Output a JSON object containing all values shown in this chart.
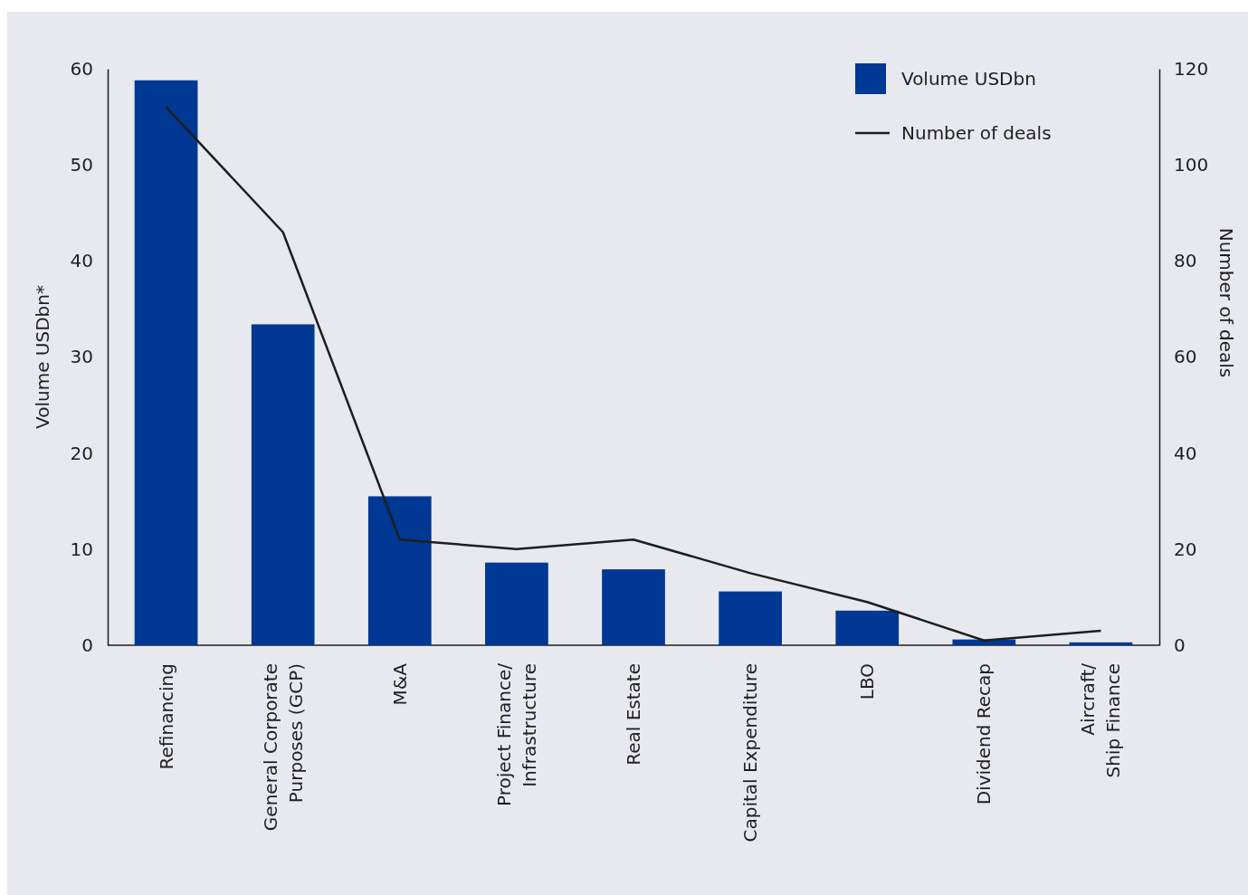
{
  "chart_data": {
    "type": "bar",
    "ylabel": "Volume USDbn*",
    "y2label": "Number of deals",
    "categories": [
      "Refinancing",
      "General Corporate\nPurposes (GCP)",
      "M&A",
      "Project Finance/\nInfrastructure",
      "Real Estate",
      "Capital Expenditure",
      "LBO",
      "Dividend Recap",
      "Aircraft/\nShip Finance"
    ],
    "series": [
      {
        "name": "Volume USDbn",
        "color": "#003893",
        "values": [
          58.8,
          33.4,
          15.5,
          8.6,
          7.9,
          5.6,
          3.6,
          0.6,
          0.3
        ]
      },
      {
        "name": "Number of deals",
        "type": "line",
        "axis": "y2",
        "color": "#1e1e1e",
        "values": [
          112,
          86,
          22,
          20,
          22,
          15,
          9,
          1,
          3
        ]
      }
    ],
    "ylim": [
      0,
      60
    ],
    "yticks": [
      0,
      10,
      20,
      30,
      40,
      50,
      60
    ],
    "y2lim": [
      0,
      120
    ],
    "y2ticks": [
      0,
      20,
      40,
      60,
      80,
      100,
      120
    ],
    "grid": false,
    "legend": "top right",
    "line_style": "solid",
    "marker": "none"
  }
}
